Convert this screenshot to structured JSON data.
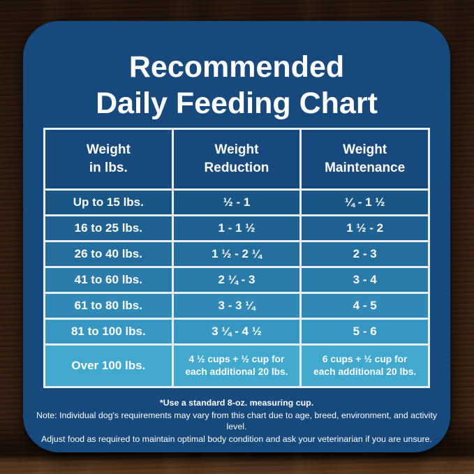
{
  "title": {
    "line1": "Recommended",
    "line2": "Daily Feeding Chart"
  },
  "table": {
    "headers": [
      "Weight\nin lbs.",
      "Weight\nReduction",
      "Weight\nMaintenance"
    ],
    "row_colors": [
      "#1a5685",
      "#1f6190",
      "#246e9d",
      "#2a7ba9",
      "#3089b6",
      "#3897c2",
      "#41a9cd"
    ]
  },
  "chart_data": {
    "type": "table",
    "title": "Recommended Daily Feeding Chart",
    "columns": [
      "Weight in lbs.",
      "Weight Reduction",
      "Weight Maintenance"
    ],
    "rows": [
      [
        "Up to 15 lbs.",
        "½ - 1",
        "¼ - 1 ½"
      ],
      [
        "16 to 25 lbs.",
        "1 - 1 ½",
        "1 ½ - 2"
      ],
      [
        "26 to 40 lbs.",
        "1 ½ - 2 ¼",
        "2 - 3"
      ],
      [
        "41 to 60 lbs.",
        "2 ¼ - 3",
        "3 - 4"
      ],
      [
        "61 to 80 lbs.",
        "3 - 3 ¼",
        "4 - 5"
      ],
      [
        "81 to 100 lbs.",
        "3 ¼ - 4 ½",
        "5 - 6"
      ],
      [
        "Over 100 lbs.",
        "4 ½ cups + ½ cup for\neach additional 20 lbs.",
        "6 cups + ½ cup for\neach additional 20 lbs."
      ]
    ],
    "notes": [
      "*Use a standard 8-oz. measuring cup.",
      "Note: Individual dog's requirements may vary from this chart due to age, breed, environment, and activity level.",
      "Adjust food as required to maintain optimal body condition and ask your veterinarian if you are unsure."
    ]
  },
  "footnotes": {
    "line1": "*Use a standard 8-oz. measuring cup.",
    "line2": "Note: Individual dog's requirements may vary from this chart due to age, breed, environment, and activity level.",
    "line3": "Adjust food as required to maintain optimal body condition and ask your veterinarian if you are unsure."
  },
  "colors": {
    "card_bg": "#17497d",
    "table_border": "#e9eef5",
    "title_text": "#ffffff",
    "row_gradient": [
      "#1a5685",
      "#1f6190",
      "#246e9d",
      "#2a7ba9",
      "#3089b6",
      "#3897c2",
      "#41a9cd"
    ],
    "wood_base": "#3a2213"
  }
}
